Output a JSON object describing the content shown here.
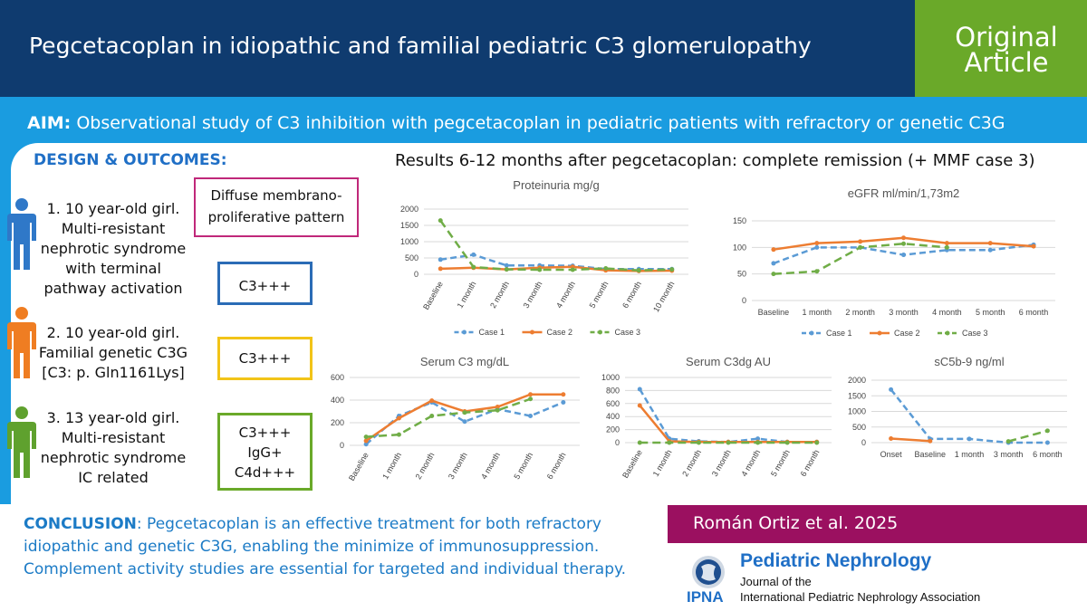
{
  "header": {
    "title": "Pegcetacoplan in idiopathic and familial pediatric C3 glomerulopathy",
    "badge_line1": "Original",
    "badge_line2": "Article"
  },
  "aim": {
    "label": "AIM:",
    "text": " Observational study of C3 inhibition with pegcetacoplan in pediatric patients with refractory or genetic C3G"
  },
  "design": {
    "label": "DESIGN & OUTCOMES:"
  },
  "cases": [
    {
      "lines": [
        "1. 10 year-old girl.",
        "Multi-resistant",
        "nephrotic syndrome",
        "with terminal",
        "pathway activation"
      ],
      "color": "#2f78c8"
    },
    {
      "lines": [
        "2. 10 year-old girl.",
        "Familial genetic C3G",
        "[C3: p. Gln1161Lys]"
      ],
      "color": "#ef7d22"
    },
    {
      "lines": [
        "3. 13 year-old girl.",
        "Multi-resistant",
        "nephrotic syndrome",
        "IC related"
      ],
      "color": "#5fa12e"
    }
  ],
  "boxes": {
    "pattern_lines": [
      "Diffuse membrano-",
      "proliferative pattern"
    ],
    "case1": [
      "C3+++"
    ],
    "case2": [
      "C3+++"
    ],
    "case3": [
      "C3+++",
      "IgG+",
      "C4d+++"
    ]
  },
  "results_title": "Results 6-12 months after pegcetacoplan: complete remission (+ MMF case 3)",
  "colors": {
    "case1": "#5b9bd5",
    "case2": "#ed7d31",
    "case3": "#70ad47",
    "dark_blue": "#0f3b6f",
    "green": "#6aa929",
    "magenta": "#9b1060",
    "accent_blue": "#1a9ce0"
  },
  "chart_data": [
    {
      "type": "line",
      "title": "Proteinuria mg/g",
      "categories": [
        "Baseline",
        "1 month",
        "2 month",
        "3 month",
        "4 month",
        "5 month",
        "6 month",
        "10 month"
      ],
      "ylim": [
        0,
        2000
      ],
      "yticks": [
        0,
        500,
        1000,
        1500,
        2000
      ],
      "series": [
        {
          "name": "Case 1",
          "values": [
            450,
            600,
            270,
            270,
            260,
            160,
            160,
            160
          ]
        },
        {
          "name": "Case 2",
          "values": [
            170,
            200,
            150,
            200,
            230,
            120,
            100,
            110
          ]
        },
        {
          "name": "Case 3",
          "values": [
            1650,
            220,
            150,
            140,
            140,
            180,
            120,
            150
          ]
        }
      ],
      "legend": [
        "Case 1",
        "Case 2",
        "Case 3"
      ]
    },
    {
      "type": "line",
      "title": "eGFR ml/min/1,73m2",
      "categories": [
        "Baseline",
        "1 month",
        "2 month",
        "3 month",
        "4 month",
        "5 month",
        "6 month"
      ],
      "ylim": [
        0,
        150
      ],
      "yticks": [
        0,
        50,
        100,
        150
      ],
      "series": [
        {
          "name": "Case 1",
          "values": [
            70,
            100,
            100,
            86,
            95,
            95,
            105
          ]
        },
        {
          "name": "Case 2",
          "values": [
            96,
            108,
            111,
            118,
            108,
            108,
            102
          ]
        },
        {
          "name": "Case 3",
          "values": [
            50,
            55,
            100,
            107,
            100,
            null,
            null
          ]
        }
      ],
      "legend": [
        "Case 1",
        "Case 2",
        "Case 3"
      ]
    },
    {
      "type": "line",
      "title": "Serum C3 mg/dL",
      "categories": [
        "Baseline",
        "1 month",
        "2 month",
        "3 month",
        "4 month",
        "5 month",
        "6 month"
      ],
      "ylim": [
        0,
        600
      ],
      "yticks": [
        0,
        200,
        400,
        600
      ],
      "series": [
        {
          "name": "Case 1",
          "values": [
            10,
            260,
            380,
            210,
            320,
            260,
            380
          ]
        },
        {
          "name": "Case 2",
          "values": [
            40,
            240,
            395,
            300,
            340,
            450,
            450
          ]
        },
        {
          "name": "Case 3",
          "values": [
            75,
            95,
            260,
            290,
            310,
            410,
            null
          ]
        }
      ]
    },
    {
      "type": "line",
      "title": "Serum C3dg AU",
      "categories": [
        "Baseline",
        "1 month",
        "2 month",
        "3 month",
        "4 month",
        "5 month",
        "6 month"
      ],
      "ylim": [
        0,
        1000
      ],
      "yticks": [
        0,
        200,
        400,
        600,
        800,
        1000
      ],
      "series": [
        {
          "name": "Case 1",
          "values": [
            820,
            60,
            20,
            10,
            60,
            10,
            10
          ]
        },
        {
          "name": "Case 2",
          "values": [
            570,
            20,
            10,
            10,
            10,
            10,
            10
          ]
        },
        {
          "name": "Case 3",
          "values": [
            0,
            0,
            0,
            0,
            0,
            0,
            0
          ]
        }
      ]
    },
    {
      "type": "line",
      "title": "sC5b-9 ng/ml",
      "categories": [
        "Onset",
        "Baseline",
        "1 month",
        "3 month",
        "6 month"
      ],
      "ylim": [
        0,
        2000
      ],
      "yticks": [
        0,
        500,
        1000,
        1500,
        2000
      ],
      "series": [
        {
          "name": "Case 1",
          "values": [
            1700,
            120,
            120,
            0,
            0
          ]
        },
        {
          "name": "Case 2",
          "values": [
            130,
            50,
            null,
            null,
            null
          ]
        },
        {
          "name": "Case 3",
          "values": [
            null,
            null,
            null,
            40,
            380
          ]
        }
      ]
    }
  ],
  "conclusion": {
    "label": "CONCLUSION",
    "lines": [
      ": Pegcetacoplan is an effective treatment for both refractory",
      "idiopathic and genetic C3G, enabling the minimize of immunosuppression.",
      "Complement activity studies are essential for targeted and individual therapy."
    ]
  },
  "author": "Román Ortiz et al. 2025",
  "journal": {
    "title": "Pediatric Nephrology",
    "sub1": "Journal of the",
    "sub2": "International Pediatric Nephrology Association",
    "logo_text": "IPNA"
  }
}
